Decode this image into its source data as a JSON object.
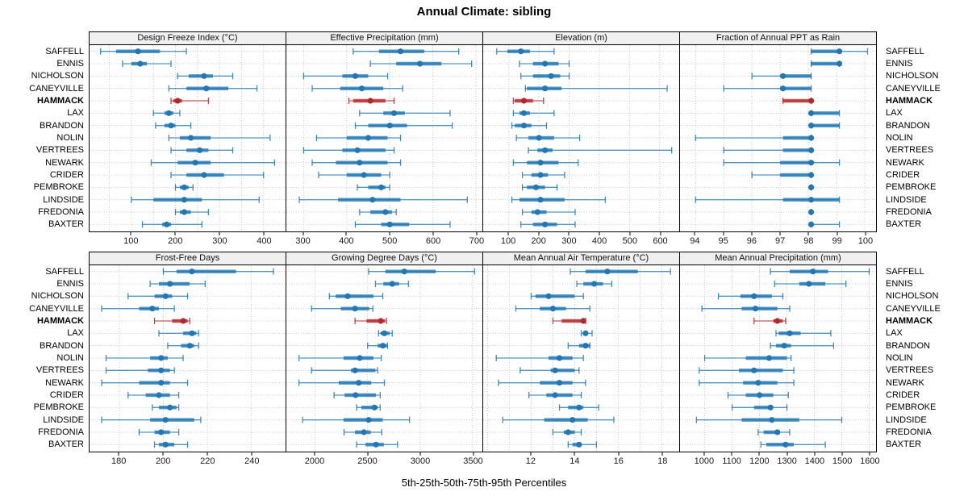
{
  "title": "Annual Climate: sibling",
  "xlabel": "5th-25th-50th-75th-95th Percentiles",
  "colors": {
    "series": "#1f77b4",
    "highlight": "#b2282a",
    "grid": "#c9c9c9",
    "strip_bg": "#f0f0f0",
    "panel_border": "#000000"
  },
  "sites": [
    "SAFFELL",
    "ENNIS",
    "NICHOLSON",
    "CANEYVILLE",
    "HAMMACK",
    "LAX",
    "BRANDON",
    "NOLIN",
    "VERTREES",
    "NEWARK",
    "CRIDER",
    "PEMBROKE",
    "LINDSIDE",
    "FREDONIA",
    "BAXTER"
  ],
  "highlight_site": "HAMMACK",
  "chart_data": {
    "type": "percentile-dotplot",
    "layout": "2 rows x 4 columns, site labels on both left and right",
    "percentile_labels": [
      "5th",
      "25th",
      "50th",
      "75th",
      "95th"
    ],
    "panels": [
      {
        "slug": "design-freeze-index",
        "title": "Design Freeze Index (°C)",
        "ticks": [
          100,
          200,
          300,
          400
        ],
        "range": [
          5,
          450
        ],
        "grid_step": 50,
        "values": [
          [
            30,
            65,
            115,
            165,
            225
          ],
          [
            80,
            100,
            120,
            135,
            190
          ],
          [
            205,
            230,
            265,
            285,
            330
          ],
          [
            185,
            225,
            270,
            320,
            385
          ],
          [
            190,
            195,
            205,
            215,
            275
          ],
          [
            150,
            175,
            185,
            195,
            210
          ],
          [
            155,
            175,
            190,
            200,
            235
          ],
          [
            185,
            210,
            235,
            280,
            415
          ],
          [
            190,
            225,
            255,
            275,
            330
          ],
          [
            145,
            205,
            245,
            280,
            425
          ],
          [
            190,
            225,
            265,
            310,
            400
          ],
          [
            200,
            210,
            220,
            230,
            240
          ],
          [
            100,
            150,
            220,
            260,
            390
          ],
          [
            200,
            210,
            220,
            235,
            275
          ],
          [
            125,
            170,
            180,
            190,
            260
          ]
        ]
      },
      {
        "slug": "effective-precipitation",
        "title": "Effective Precipitation (mm)",
        "ticks": [
          300,
          400,
          500,
          600,
          700
        ],
        "range": [
          260,
          715
        ],
        "grid_step": 100,
        "values": [
          [
            415,
            475,
            525,
            580,
            660
          ],
          [
            455,
            515,
            570,
            620,
            690
          ],
          [
            300,
            390,
            420,
            450,
            495
          ],
          [
            320,
            385,
            435,
            485,
            530
          ],
          [
            405,
            415,
            455,
            490,
            510
          ],
          [
            430,
            485,
            510,
            535,
            640
          ],
          [
            420,
            450,
            500,
            540,
            645
          ],
          [
            330,
            400,
            450,
            495,
            525
          ],
          [
            300,
            390,
            425,
            490,
            510
          ],
          [
            320,
            375,
            430,
            495,
            525
          ],
          [
            335,
            400,
            440,
            480,
            500
          ],
          [
            425,
            450,
            480,
            490,
            500
          ],
          [
            290,
            380,
            460,
            525,
            680
          ],
          [
            430,
            455,
            490,
            505,
            515
          ],
          [
            420,
            480,
            500,
            545,
            640
          ]
        ]
      },
      {
        "slug": "elevation",
        "title": "Elevation (m)",
        "ticks": [
          100,
          200,
          300,
          400,
          500,
          600
        ],
        "range": [
          15,
          665
        ],
        "grid_step": 100,
        "values": [
          [
            60,
            95,
            140,
            170,
            250
          ],
          [
            135,
            180,
            220,
            265,
            300
          ],
          [
            140,
            180,
            240,
            270,
            300
          ],
          [
            155,
            160,
            220,
            275,
            625
          ],
          [
            115,
            120,
            150,
            180,
            215
          ],
          [
            115,
            135,
            150,
            170,
            250
          ],
          [
            110,
            120,
            150,
            175,
            225
          ],
          [
            125,
            165,
            200,
            250,
            335
          ],
          [
            165,
            195,
            220,
            245,
            640
          ],
          [
            115,
            160,
            205,
            265,
            330
          ],
          [
            145,
            175,
            205,
            230,
            285
          ],
          [
            145,
            160,
            190,
            220,
            260
          ],
          [
            110,
            135,
            205,
            285,
            420
          ],
          [
            145,
            175,
            195,
            225,
            320
          ],
          [
            140,
            180,
            220,
            260,
            320
          ]
        ]
      },
      {
        "slug": "fraction-ppt-rain",
        "title": "Fraction of Annual PPT as Rain",
        "ticks": [
          94,
          95,
          96,
          97,
          98,
          99,
          100
        ],
        "range": [
          93.45,
          100.4
        ],
        "grid_step": 1,
        "values": [
          [
            98.1,
            98.1,
            99.1,
            99.1,
            100.1
          ],
          [
            98.1,
            98.1,
            99.1,
            99.1,
            99.1
          ],
          [
            96.0,
            97.0,
            97.1,
            98.1,
            98.1
          ],
          [
            95.0,
            97.0,
            97.1,
            98.1,
            98.1
          ],
          [
            97.1,
            97.1,
            98.1,
            98.1,
            98.1
          ],
          [
            98.1,
            98.1,
            98.1,
            99.1,
            99.1
          ],
          [
            98.1,
            98.1,
            98.1,
            99.1,
            99.1
          ],
          [
            94.0,
            97.1,
            98.1,
            98.1,
            98.1
          ],
          [
            95.0,
            97.1,
            98.1,
            98.1,
            98.1
          ],
          [
            95.0,
            97.0,
            98.1,
            98.1,
            99.1
          ],
          [
            96.0,
            97.0,
            98.1,
            98.1,
            98.1
          ],
          [
            98.1,
            98.1,
            98.1,
            98.1,
            98.1
          ],
          [
            94.0,
            97.1,
            98.1,
            99.1,
            99.1
          ],
          [
            98.1,
            98.1,
            98.1,
            98.1,
            98.1
          ],
          [
            98.1,
            98.1,
            98.1,
            98.1,
            99.1
          ]
        ]
      },
      {
        "slug": "frost-free-days",
        "title": "Frost-Free Days",
        "ticks": [
          180,
          200,
          220,
          240
        ],
        "range": [
          166.5,
          255.5
        ],
        "grid_step": 20,
        "values": [
          [
            200,
            206,
            213,
            233,
            250
          ],
          [
            194,
            198,
            203,
            212,
            219
          ],
          [
            184,
            196,
            201,
            204,
            211
          ],
          [
            172,
            189,
            195,
            198,
            205
          ],
          [
            196,
            204,
            209,
            211,
            212
          ],
          [
            198,
            209,
            213,
            215,
            216
          ],
          [
            202,
            208,
            212,
            214,
            216
          ],
          [
            174,
            194,
            199,
            202,
            209
          ],
          [
            174,
            193,
            199,
            203,
            205
          ],
          [
            172,
            189,
            199,
            203,
            211
          ],
          [
            184,
            192,
            198,
            203,
            207
          ],
          [
            195,
            198,
            203,
            206,
            207
          ],
          [
            172,
            194,
            201,
            214,
            217
          ],
          [
            189,
            196,
            199,
            203,
            207
          ],
          [
            196,
            198,
            201,
            205,
            211
          ]
        ]
      },
      {
        "slug": "growing-degree-days",
        "title": "Growing Degree Days (°C)",
        "ticks": [
          2000,
          2500,
          3000,
          3500
        ],
        "range": [
          1725,
          3595
        ],
        "grid_step": 500,
        "values": [
          [
            2510,
            2670,
            2850,
            3150,
            3520
          ],
          [
            2575,
            2650,
            2735,
            2800,
            2890
          ],
          [
            2135,
            2195,
            2310,
            2555,
            2645
          ],
          [
            1965,
            2245,
            2380,
            2515,
            2550
          ],
          [
            2380,
            2490,
            2625,
            2665,
            2680
          ],
          [
            2605,
            2625,
            2660,
            2710,
            2735
          ],
          [
            2500,
            2595,
            2645,
            2685,
            2690
          ],
          [
            1845,
            2270,
            2425,
            2555,
            2630
          ],
          [
            1965,
            2340,
            2380,
            2575,
            2595
          ],
          [
            1845,
            2225,
            2415,
            2535,
            2660
          ],
          [
            2180,
            2280,
            2385,
            2580,
            2620
          ],
          [
            2395,
            2440,
            2565,
            2595,
            2620
          ],
          [
            1880,
            2270,
            2510,
            2645,
            2900
          ],
          [
            2275,
            2380,
            2465,
            2530,
            2635
          ],
          [
            2395,
            2480,
            2580,
            2655,
            2785
          ]
        ]
      },
      {
        "slug": "mean-annual-air-temperature",
        "title": "Mean Annual Air Temperature (°C)",
        "ticks": [
          12,
          14,
          16,
          18
        ],
        "range": [
          9.8,
          18.8
        ],
        "grid_step": 1,
        "values": [
          [
            13.8,
            14.5,
            15.5,
            16.9,
            18.4
          ],
          [
            14.1,
            14.4,
            14.9,
            15.3,
            15.7
          ],
          [
            12.0,
            12.2,
            12.8,
            14.0,
            14.4
          ],
          [
            11.3,
            12.4,
            13.0,
            13.6,
            14.7
          ],
          [
            13.0,
            13.4,
            14.4,
            14.4,
            14.5
          ],
          [
            14.3,
            14.4,
            14.5,
            14.6,
            14.8
          ],
          [
            13.7,
            14.2,
            14.5,
            14.7,
            14.7
          ],
          [
            10.4,
            12.8,
            13.3,
            13.9,
            14.4
          ],
          [
            11.5,
            12.9,
            13.1,
            14.0,
            14.2
          ],
          [
            10.5,
            12.4,
            13.3,
            13.9,
            14.5
          ],
          [
            11.9,
            12.7,
            13.1,
            13.9,
            14.3
          ],
          [
            13.3,
            13.7,
            14.2,
            14.4,
            15.1
          ],
          [
            10.7,
            12.6,
            13.9,
            14.6,
            15.8
          ],
          [
            13.0,
            13.5,
            13.7,
            14.0,
            14.3
          ],
          [
            13.7,
            13.9,
            14.2,
            14.3,
            15.0
          ]
        ]
      },
      {
        "slug": "mean-annual-precipitation",
        "title": "Mean Annual Precipitation (mm)",
        "ticks": [
          1000,
          1100,
          1200,
          1300,
          1400,
          1500,
          1600
        ],
        "range": [
          910,
          1625
        ],
        "grid_step": 100,
        "values": [
          [
            1240,
            1310,
            1395,
            1450,
            1600
          ],
          [
            1255,
            1345,
            1380,
            1440,
            1515
          ],
          [
            1050,
            1130,
            1180,
            1245,
            1285
          ],
          [
            990,
            1135,
            1185,
            1265,
            1310
          ],
          [
            1180,
            1250,
            1265,
            1285,
            1295
          ],
          [
            1260,
            1270,
            1310,
            1350,
            1460
          ],
          [
            1240,
            1260,
            1290,
            1315,
            1470
          ],
          [
            1000,
            1150,
            1235,
            1300,
            1315
          ],
          [
            980,
            1125,
            1180,
            1285,
            1325
          ],
          [
            980,
            1140,
            1195,
            1265,
            1325
          ],
          [
            1085,
            1150,
            1200,
            1250,
            1305
          ],
          [
            1100,
            1180,
            1240,
            1245,
            1300
          ],
          [
            970,
            1135,
            1245,
            1345,
            1500
          ],
          [
            1195,
            1215,
            1265,
            1275,
            1310
          ],
          [
            1205,
            1225,
            1295,
            1325,
            1440
          ]
        ]
      }
    ]
  }
}
